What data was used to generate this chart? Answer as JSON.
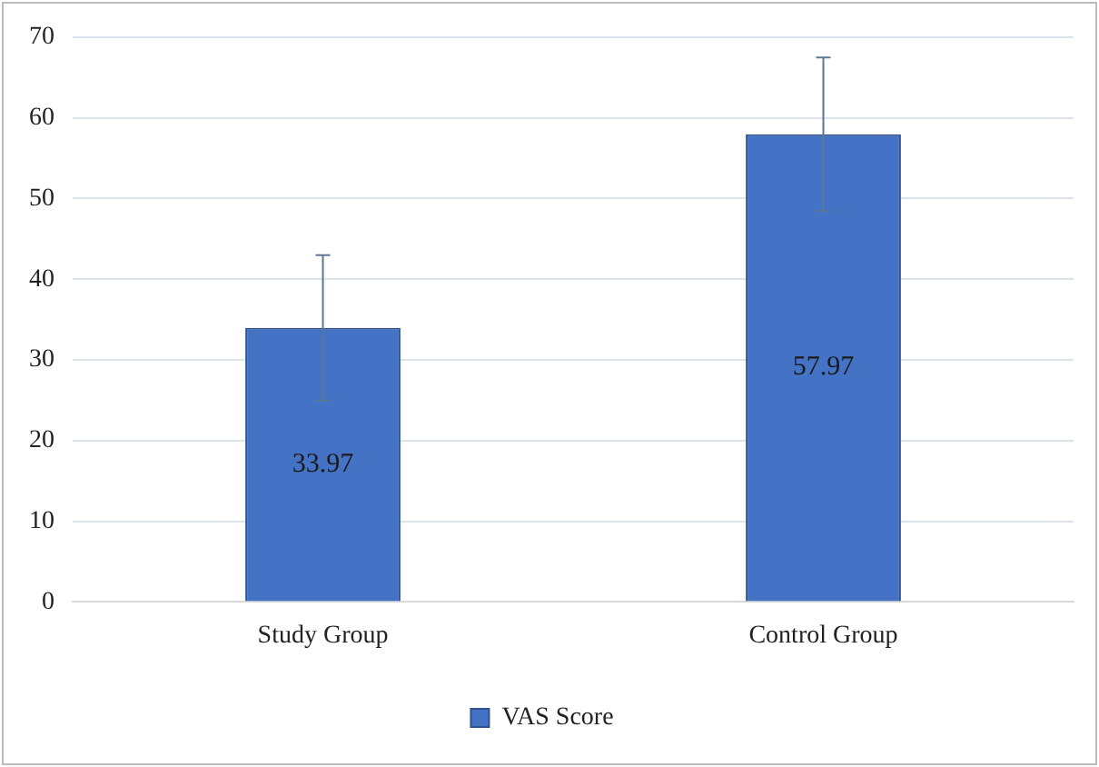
{
  "chart_data": {
    "type": "bar",
    "categories": [
      "Study Group",
      "Control Group"
    ],
    "series": [
      {
        "name": "VAS Score",
        "color": "#4472c4",
        "values": [
          33.97,
          57.97
        ],
        "errors": [
          9,
          9.5
        ]
      }
    ],
    "ylim": [
      0,
      70
    ],
    "yticks": [
      0,
      10,
      20,
      30,
      40,
      50,
      60,
      70
    ],
    "grid": "y",
    "legend": "bottom",
    "data_labels": true
  }
}
